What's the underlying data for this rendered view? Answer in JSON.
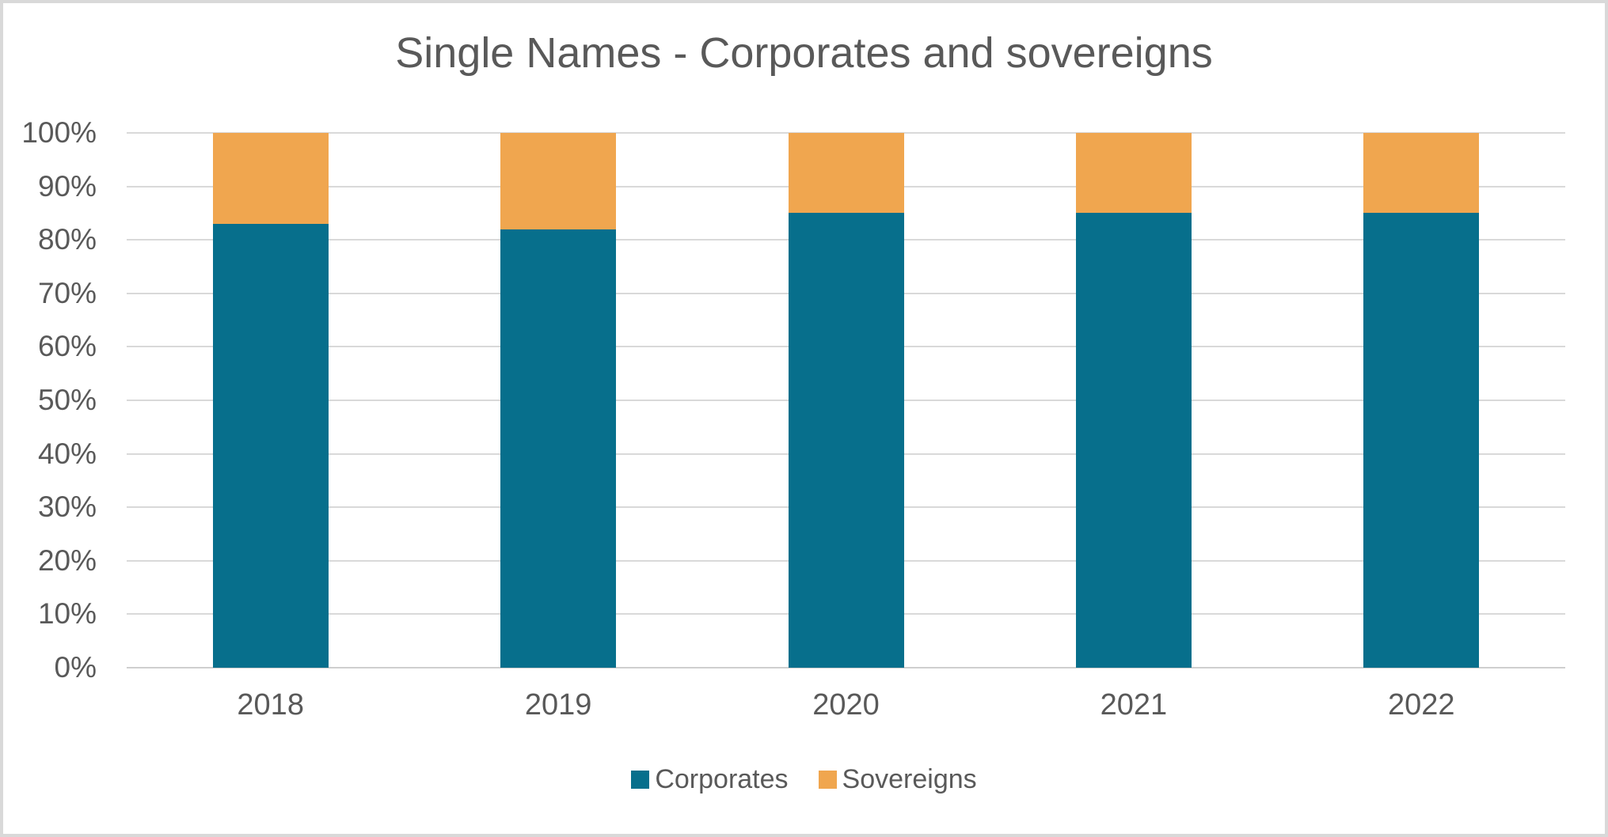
{
  "title": "Single Names - Corporates and sovereigns",
  "chart_data": {
    "type": "bar",
    "subtype": "stacked-100-percent-column",
    "title": "Single Names - Corporates and sovereigns",
    "categories": [
      "2018",
      "2019",
      "2020",
      "2021",
      "2022"
    ],
    "series": [
      {
        "name": "Corporates",
        "color": "#076F8C",
        "values": [
          83,
          82,
          85,
          85,
          85
        ]
      },
      {
        "name": "Sovereigns",
        "color": "#F0A64F",
        "values": [
          17,
          18,
          15,
          15,
          15
        ]
      }
    ],
    "xlabel": "",
    "ylabel": "",
    "y_axis": {
      "min": 0,
      "max": 100,
      "step": 10,
      "tick_labels": [
        "0%",
        "10%",
        "20%",
        "30%",
        "40%",
        "50%",
        "60%",
        "70%",
        "80%",
        "90%",
        "100%"
      ]
    },
    "grid": true,
    "legend_position": "bottom",
    "legend": [
      "Corporates",
      "Sovereigns"
    ]
  },
  "colors": {
    "background": "#ffffff",
    "frame_border": "#d9d9d9",
    "gridline": "#d9d9d9",
    "axis_line": "#cfcfcf",
    "text": "#595959",
    "corporates": "#076F8C",
    "sovereigns": "#F0A64F"
  }
}
